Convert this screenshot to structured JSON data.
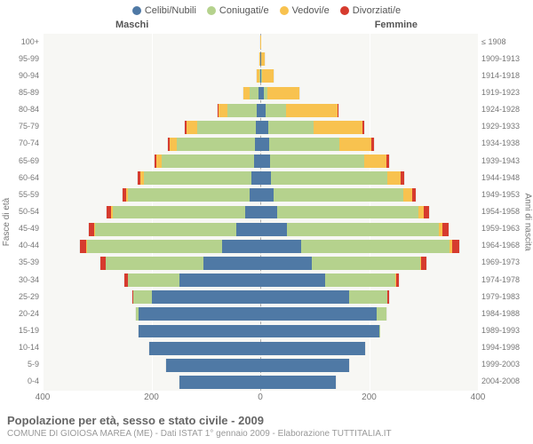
{
  "legend": [
    {
      "label": "Celibi/Nubili",
      "color": "#4f79a5"
    },
    {
      "label": "Coniugati/e",
      "color": "#b5d28d"
    },
    {
      "label": "Vedovi/e",
      "color": "#f8c24f"
    },
    {
      "label": "Divorziati/e",
      "color": "#d63b2e"
    }
  ],
  "gender": {
    "male": "Maschi",
    "female": "Femmine"
  },
  "axis": {
    "left_title": "Fasce di età",
    "right_title": "Anni di nascita",
    "xmax": 400,
    "xticks": [
      400,
      200,
      0,
      200,
      400
    ]
  },
  "title": "Popolazione per età, sesso e stato civile - 2009",
  "subtitle": "COMUNE DI GIOIOSA MAREA (ME) - Dati ISTAT 1° gennaio 2009 - Elaborazione TUTTITALIA.IT",
  "colors": {
    "plot_bg": "#f7f7f4",
    "grid": "#ffffff",
    "center": "#aaaaaa"
  },
  "rows": [
    {
      "age": "100+",
      "birth": "≤ 1908",
      "m": [
        0,
        0,
        0,
        0
      ],
      "f": [
        0,
        0,
        2,
        0
      ]
    },
    {
      "age": "95-99",
      "birth": "1909-1913",
      "m": [
        0,
        0,
        3,
        0
      ],
      "f": [
        1,
        0,
        8,
        0
      ]
    },
    {
      "age": "90-94",
      "birth": "1914-1918",
      "m": [
        1,
        2,
        6,
        0
      ],
      "f": [
        2,
        2,
        22,
        0
      ]
    },
    {
      "age": "85-89",
      "birth": "1919-1923",
      "m": [
        3,
        18,
        12,
        0
      ],
      "f": [
        6,
        8,
        60,
        0
      ]
    },
    {
      "age": "80-84",
      "birth": "1924-1928",
      "m": [
        6,
        55,
        18,
        1
      ],
      "f": [
        10,
        38,
        95,
        2
      ]
    },
    {
      "age": "75-79",
      "birth": "1929-1933",
      "m": [
        8,
        110,
        20,
        2
      ],
      "f": [
        14,
        85,
        90,
        3
      ]
    },
    {
      "age": "70-74",
      "birth": "1934-1938",
      "m": [
        10,
        145,
        14,
        3
      ],
      "f": [
        16,
        130,
        60,
        4
      ]
    },
    {
      "age": "65-69",
      "birth": "1939-1943",
      "m": [
        12,
        170,
        10,
        4
      ],
      "f": [
        18,
        175,
        40,
        5
      ]
    },
    {
      "age": "60-64",
      "birth": "1944-1948",
      "m": [
        16,
        200,
        6,
        5
      ],
      "f": [
        20,
        215,
        25,
        6
      ]
    },
    {
      "age": "55-59",
      "birth": "1949-1953",
      "m": [
        20,
        225,
        4,
        6
      ],
      "f": [
        25,
        240,
        15,
        8
      ]
    },
    {
      "age": "50-54",
      "birth": "1954-1958",
      "m": [
        28,
        245,
        3,
        8
      ],
      "f": [
        32,
        260,
        10,
        10
      ]
    },
    {
      "age": "45-49",
      "birth": "1959-1963",
      "m": [
        45,
        260,
        2,
        10
      ],
      "f": [
        50,
        280,
        6,
        12
      ]
    },
    {
      "age": "40-44",
      "birth": "1964-1968",
      "m": [
        70,
        250,
        1,
        12
      ],
      "f": [
        75,
        275,
        4,
        14
      ]
    },
    {
      "age": "35-39",
      "birth": "1969-1973",
      "m": [
        105,
        180,
        0,
        10
      ],
      "f": [
        95,
        200,
        2,
        10
      ]
    },
    {
      "age": "30-34",
      "birth": "1974-1978",
      "m": [
        150,
        95,
        0,
        6
      ],
      "f": [
        120,
        130,
        1,
        6
      ]
    },
    {
      "age": "25-29",
      "birth": "1979-1983",
      "m": [
        200,
        35,
        0,
        2
      ],
      "f": [
        165,
        70,
        0,
        3
      ]
    },
    {
      "age": "20-24",
      "birth": "1984-1988",
      "m": [
        225,
        6,
        0,
        0
      ],
      "f": [
        215,
        18,
        0,
        0
      ]
    },
    {
      "age": "15-19",
      "birth": "1989-1993",
      "m": [
        225,
        0,
        0,
        0
      ],
      "f": [
        220,
        1,
        0,
        0
      ]
    },
    {
      "age": "10-14",
      "birth": "1994-1998",
      "m": [
        205,
        0,
        0,
        0
      ],
      "f": [
        195,
        0,
        0,
        0
      ]
    },
    {
      "age": "5-9",
      "birth": "1999-2003",
      "m": [
        175,
        0,
        0,
        0
      ],
      "f": [
        165,
        0,
        0,
        0
      ]
    },
    {
      "age": "0-4",
      "birth": "2004-2008",
      "m": [
        150,
        0,
        0,
        0
      ],
      "f": [
        140,
        0,
        0,
        0
      ]
    }
  ]
}
